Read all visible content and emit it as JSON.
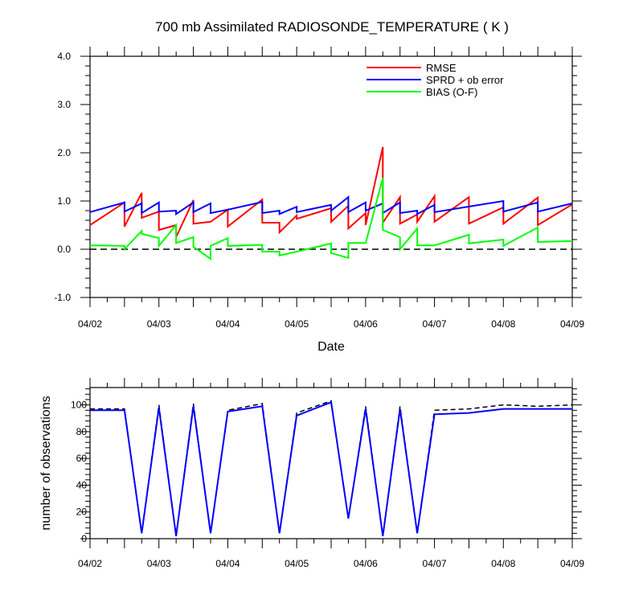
{
  "chart_data": [
    {
      "type": "line",
      "title": "700 mb Assimilated RADIOSONDE_TEMPERATURE ( K )",
      "xlabel": "Date",
      "ylabel": "",
      "x_tick_labels": [
        "04/02",
        "04/03",
        "04/04",
        "04/05",
        "04/06",
        "04/07",
        "04/08",
        "04/09"
      ],
      "y_tick_labels": [
        "-1.0",
        "0.0",
        "1.0",
        "2.0",
        "3.0",
        "4.0"
      ],
      "ylim": [
        -1.0,
        4.0
      ],
      "xlim": [
        0,
        7
      ],
      "grid": false,
      "legend_position": "top-right",
      "reference_line": {
        "y": 0.0,
        "style": "dashed",
        "color": "#000000"
      },
      "series": [
        {
          "name": "RMSE",
          "color": "#ff0000",
          "points": [
            [
              0,
              0.5
            ],
            [
              0.5,
              0.97
            ],
            [
              0.5,
              0.47
            ],
            [
              0.75,
              1.17
            ],
            [
              0.75,
              0.65
            ],
            [
              1,
              0.78
            ],
            [
              1,
              0.4
            ],
            [
              1.25,
              0.5
            ],
            [
              1.25,
              0.25
            ],
            [
              1.5,
              1.02
            ],
            [
              1.5,
              0.53
            ],
            [
              1.75,
              0.57
            ],
            [
              2,
              0.82
            ],
            [
              2,
              0.47
            ],
            [
              2.5,
              1.03
            ],
            [
              2.5,
              0.55
            ],
            [
              2.75,
              0.55
            ],
            [
              2.75,
              0.35
            ],
            [
              3,
              0.7
            ],
            [
              3,
              0.63
            ],
            [
              3.5,
              0.85
            ],
            [
              3.5,
              0.57
            ],
            [
              3.75,
              0.9
            ],
            [
              3.75,
              0.43
            ],
            [
              4,
              0.75
            ],
            [
              4,
              0.5
            ],
            [
              4.25,
              2.12
            ],
            [
              4.25,
              0.55
            ],
            [
              4.5,
              1.08
            ],
            [
              4.5,
              0.53
            ],
            [
              4.75,
              0.72
            ],
            [
              4.75,
              0.57
            ],
            [
              5,
              1.1
            ],
            [
              5,
              0.57
            ],
            [
              5.5,
              1.08
            ],
            [
              5.5,
              0.53
            ],
            [
              6,
              0.87
            ],
            [
              6,
              0.53
            ],
            [
              6.5,
              1.07
            ],
            [
              6.5,
              0.5
            ],
            [
              7,
              0.93
            ]
          ]
        },
        {
          "name": "SPRD + ob error",
          "color": "#0000ff",
          "points": [
            [
              0,
              0.77
            ],
            [
              0.5,
              0.97
            ],
            [
              0.5,
              0.78
            ],
            [
              0.75,
              0.95
            ],
            [
              0.75,
              0.75
            ],
            [
              1,
              0.97
            ],
            [
              1,
              0.78
            ],
            [
              1.25,
              0.8
            ],
            [
              1.25,
              0.73
            ],
            [
              1.5,
              0.97
            ],
            [
              1.5,
              0.77
            ],
            [
              1.75,
              0.95
            ],
            [
              1.75,
              0.75
            ],
            [
              2,
              0.82
            ],
            [
              2.5,
              0.98
            ],
            [
              2.5,
              0.75
            ],
            [
              2.75,
              0.8
            ],
            [
              2.75,
              0.73
            ],
            [
              3,
              0.88
            ],
            [
              3,
              0.77
            ],
            [
              3.5,
              0.92
            ],
            [
              3.5,
              0.8
            ],
            [
              3.75,
              1.08
            ],
            [
              3.75,
              0.77
            ],
            [
              4,
              0.97
            ],
            [
              4,
              0.8
            ],
            [
              4.25,
              0.95
            ],
            [
              4.25,
              0.75
            ],
            [
              4.5,
              0.97
            ],
            [
              4.5,
              0.75
            ],
            [
              4.75,
              0.8
            ],
            [
              4.75,
              0.73
            ],
            [
              5,
              0.92
            ],
            [
              5,
              0.77
            ],
            [
              6,
              1.0
            ],
            [
              6,
              0.78
            ],
            [
              6.5,
              0.97
            ],
            [
              6.5,
              0.78
            ],
            [
              7,
              0.95
            ]
          ]
        },
        {
          "name": "BIAS (O-F)",
          "color": "#00ff00",
          "points": [
            [
              0,
              0.08
            ],
            [
              0.5,
              0.07
            ],
            [
              0.5,
              0.0
            ],
            [
              0.75,
              0.38
            ],
            [
              0.75,
              0.32
            ],
            [
              1,
              0.23
            ],
            [
              1,
              0.07
            ],
            [
              1.25,
              0.5
            ],
            [
              1.25,
              0.13
            ],
            [
              1.5,
              0.25
            ],
            [
              1.5,
              0.05
            ],
            [
              1.75,
              -0.2
            ],
            [
              1.75,
              0.07
            ],
            [
              2,
              0.23
            ],
            [
              2,
              0.07
            ],
            [
              2.5,
              0.09
            ],
            [
              2.5,
              -0.05
            ],
            [
              2.75,
              -0.05
            ],
            [
              2.75,
              -0.13
            ],
            [
              3,
              -0.05
            ],
            [
              3.5,
              0.12
            ],
            [
              3.5,
              -0.08
            ],
            [
              3.75,
              -0.18
            ],
            [
              3.75,
              0.13
            ],
            [
              4,
              0.13
            ],
            [
              4,
              0.12
            ],
            [
              4.25,
              1.48
            ],
            [
              4.25,
              0.4
            ],
            [
              4.5,
              0.25
            ],
            [
              4.5,
              0.0
            ],
            [
              4.75,
              0.43
            ],
            [
              4.75,
              0.08
            ],
            [
              5,
              0.08
            ],
            [
              5.5,
              0.3
            ],
            [
              5.5,
              0.12
            ],
            [
              6,
              0.2
            ],
            [
              6,
              0.07
            ],
            [
              6.5,
              0.45
            ],
            [
              6.5,
              0.15
            ],
            [
              7,
              0.17
            ]
          ]
        }
      ]
    },
    {
      "type": "line",
      "title": "",
      "xlabel": "",
      "ylabel": "number of observations",
      "x_tick_labels": [
        "04/02",
        "04/03",
        "04/04",
        "04/05",
        "04/06",
        "04/07",
        "04/08",
        "04/09"
      ],
      "y_tick_labels": [
        "0",
        "20",
        "40",
        "60",
        "80",
        "100"
      ],
      "ylim": [
        0,
        113
      ],
      "xlim": [
        0,
        7
      ],
      "grid": false,
      "series": [
        {
          "name": "",
          "color": "#000000",
          "style": "dashed",
          "points": [
            [
              0,
              97
            ],
            [
              0.5,
              97
            ],
            [
              0.75,
              4
            ],
            [
              1,
              100
            ],
            [
              1.25,
              2
            ],
            [
              1.5,
              101
            ],
            [
              1.75,
              4
            ],
            [
              2,
              96
            ],
            [
              2.5,
              101
            ],
            [
              2.75,
              4
            ],
            [
              3,
              94
            ],
            [
              3.5,
              103
            ],
            [
              3.75,
              15
            ],
            [
              4,
              99
            ],
            [
              4.25,
              2
            ],
            [
              4.5,
              99
            ],
            [
              4.75,
              4
            ],
            [
              5,
              96
            ],
            [
              5.5,
              97
            ],
            [
              6,
              100
            ],
            [
              6.5,
              99
            ],
            [
              7,
              100
            ]
          ]
        },
        {
          "name": "",
          "color": "#0000ff",
          "style": "solid",
          "points": [
            [
              0,
              96
            ],
            [
              0.5,
              96
            ],
            [
              0.75,
              4
            ],
            [
              1,
              98
            ],
            [
              1.25,
              2
            ],
            [
              1.5,
              99
            ],
            [
              1.75,
              4
            ],
            [
              2,
              95
            ],
            [
              2.5,
              99
            ],
            [
              2.75,
              4
            ],
            [
              3,
              92
            ],
            [
              3.5,
              102
            ],
            [
              3.75,
              15
            ],
            [
              4,
              97
            ],
            [
              4.25,
              2
            ],
            [
              4.5,
              97
            ],
            [
              4.75,
              4
            ],
            [
              5,
              93
            ],
            [
              5.5,
              94
            ],
            [
              6,
              97
            ],
            [
              6.5,
              97
            ],
            [
              7,
              97
            ]
          ]
        }
      ]
    }
  ]
}
